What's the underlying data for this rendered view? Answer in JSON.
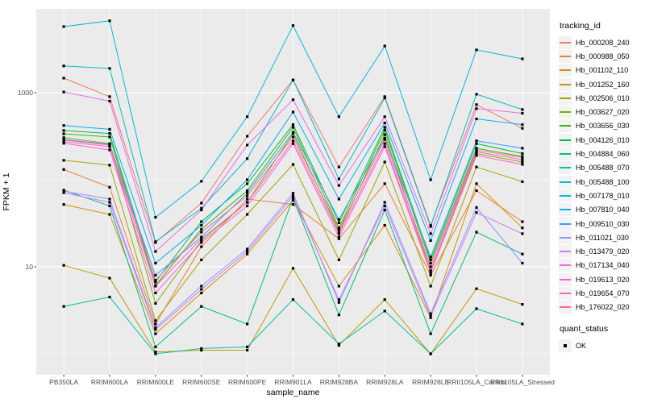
{
  "figure": {
    "bg": "#FFFFFF",
    "panel_bg": "#EBEBEB",
    "grid_color": "#FFFFFF",
    "tick_color": "#333333",
    "tick_label_color": "#4D4D4D",
    "point_color": "#000000"
  },
  "chart_data": {
    "type": "line",
    "title": "",
    "xlabel": "sample_name",
    "ylabel": "FPKM + 1",
    "y_scale": "log10",
    "ylim": [
      0.58,
      9180
    ],
    "y_major_ticks": [
      {
        "label": "10",
        "value": 10
      },
      {
        "label": "1000",
        "value": 1000
      }
    ],
    "y_minor_ticks": [
      1,
      100
    ],
    "grid": true,
    "marker": "black-square",
    "categories": [
      "PB350LA",
      "RRIM600LA",
      "RRIM600LE",
      "RRIM600SE",
      "RRIM600PE",
      "RRIM901LA",
      "RRIM928BA",
      "RRIM928LA",
      "RRIM928LE",
      "RRII105LA_Control",
      "RRII105LA_Stressed"
    ],
    "legend": {
      "title": "tracking_id",
      "position": "right"
    },
    "quant_status": {
      "title": "quant_status",
      "entries": [
        {
          "label": "OK",
          "shape": "square",
          "color": "#000000"
        }
      ]
    },
    "series": [
      {
        "name": "Hb_000208_240",
        "color": "#F8766D",
        "values": [
          1470,
          900,
          19,
          54,
          316,
          1400,
          140,
          900,
          30,
          730,
          390
        ]
      },
      {
        "name": "Hb_000988_050",
        "color": "#EA8331",
        "values": [
          131,
          82,
          2.2,
          17,
          60,
          52,
          21,
          90,
          8,
          75,
          33
        ]
      },
      {
        "name": "Hb_001102_110",
        "color": "#D89000",
        "values": [
          52,
          40,
          1.7,
          5,
          14,
          58,
          6,
          30,
          2.6,
          90,
          28
        ]
      },
      {
        "name": "Hb_001252_160",
        "color": "#C09B00",
        "values": [
          10.4,
          7.4,
          1.05,
          1.1,
          1.1,
          9.6,
          1.25,
          4.2,
          1.0,
          5.6,
          3.7
        ]
      },
      {
        "name": "Hb_002506_010",
        "color": "#A3A500",
        "values": [
          167,
          147,
          2.4,
          12,
          40,
          150,
          12,
          160,
          6,
          140,
          95
        ]
      },
      {
        "name": "Hb_003627_020",
        "color": "#7CAE00",
        "values": [
          304,
          260,
          3.8,
          20,
          55,
          340,
          25,
          330,
          9,
          200,
          160
        ]
      },
      {
        "name": "Hb_003656_030",
        "color": "#39B600",
        "values": [
          337,
          310,
          6.1,
          27,
          75,
          400,
          28,
          370,
          11,
          230,
          185
        ]
      },
      {
        "name": "Hb_004126_010",
        "color": "#00BB4E",
        "values": [
          368,
          340,
          6.7,
          33,
          90,
          430,
          32,
          400,
          12,
          260,
          200
        ]
      },
      {
        "name": "Hb_004884_060",
        "color": "#00BF7D",
        "values": [
          76,
          50,
          1.2,
          3.5,
          2.2,
          62,
          2.8,
          45,
          1.7,
          25,
          14
        ]
      },
      {
        "name": "Hb_005488_070",
        "color": "#00C1A3",
        "values": [
          3.5,
          4.5,
          1.0,
          1.15,
          1.2,
          4.2,
          1.3,
          3.1,
          1.0,
          3.3,
          2.2
        ]
      },
      {
        "name": "Hb_005488_100",
        "color": "#00BFC4",
        "values": [
          2030,
          1900,
          19.4,
          47,
          175,
          1400,
          102,
          870,
          29,
          960,
          640
        ]
      },
      {
        "name": "Hb_007178_010",
        "color": "#00BAE0",
        "values": [
          5750,
          6700,
          37,
          96,
          530,
          5900,
          530,
          3440,
          100,
          3100,
          2450
        ]
      },
      {
        "name": "Hb_007810_040",
        "color": "#00B0F6",
        "values": [
          420,
          380,
          11,
          30,
          100,
          600,
          60,
          450,
          20,
          500,
          430
        ]
      },
      {
        "name": "Hb_009510_030",
        "color": "#35A2FF",
        "values": [
          290,
          255,
          8,
          22,
          70,
          350,
          35,
          300,
          13,
          280,
          230
        ]
      },
      {
        "name": "Hb_011021_030",
        "color": "#9590FF",
        "values": [
          74,
          60,
          2.0,
          6,
          16,
          70,
          3.9,
          55,
          2.9,
          48,
          11
        ]
      },
      {
        "name": "Hb_013479_020",
        "color": "#C77CFF",
        "values": [
          71,
          55,
          1.9,
          5.5,
          15,
          65,
          4.2,
          50,
          2.7,
          42,
          24
        ]
      },
      {
        "name": "Hb_017134_040",
        "color": "#E76BF3",
        "values": [
          1020,
          800,
          15,
          45,
          250,
          830,
          86,
          530,
          24,
          655,
          580
        ]
      },
      {
        "name": "Hb_019613_020",
        "color": "#FA62DB",
        "values": [
          262,
          220,
          5,
          19,
          50,
          260,
          22,
          240,
          8.5,
          190,
          150
        ]
      },
      {
        "name": "Hb_019654_070",
        "color": "#FF62BC",
        "values": [
          273,
          240,
          6,
          21,
          55,
          280,
          24,
          260,
          9,
          210,
          170
        ]
      },
      {
        "name": "Hb_176022_020",
        "color": "#FF6A98",
        "values": [
          285,
          250,
          7,
          25,
          65,
          310,
          27,
          290,
          10,
          220,
          180
        ]
      }
    ]
  }
}
